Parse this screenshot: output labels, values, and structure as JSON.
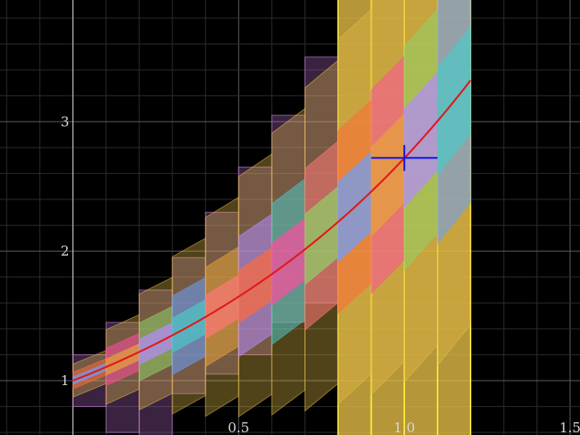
{
  "chart_data": {
    "type": "area",
    "xlim": [
      -0.22,
      1.53
    ],
    "ylim": [
      0.58,
      3.94
    ],
    "grid": true,
    "x_ticks": [
      {
        "value": 0.5,
        "label": "0.5"
      },
      {
        "value": 1.0,
        "label": "1.0"
      },
      {
        "value": 1.5,
        "label": "1.5"
      }
    ],
    "y_ticks": [
      {
        "value": 1,
        "label": "1"
      },
      {
        "value": 2,
        "label": "2"
      },
      {
        "value": 3,
        "label": "3"
      }
    ],
    "x_minor_step": 0.1,
    "y_minor_step": 0.2,
    "curve": {
      "function": "exp(x)",
      "x_range": [
        0,
        1.2
      ]
    },
    "boxes": [
      {
        "x": 0.0,
        "y_low": 0.8,
        "y_high": 1.2
      },
      {
        "x": 0.1,
        "y_low": 0.6,
        "y_high": 1.45
      },
      {
        "x": 0.2,
        "y_low": 0.55,
        "y_high": 1.7
      },
      {
        "x": 0.3,
        "y_low": 0.9,
        "y_high": 1.95
      },
      {
        "x": 0.4,
        "y_low": 1.05,
        "y_high": 2.3
      },
      {
        "x": 0.5,
        "y_low": 1.2,
        "y_high": 2.65
      },
      {
        "x": 0.6,
        "y_low": 1.45,
        "y_high": 3.05
      },
      {
        "x": 0.7,
        "y_low": 1.6,
        "y_high": 3.5
      }
    ],
    "yellow_boxes_x": [
      0.8,
      0.9,
      1.0,
      1.1
    ],
    "marker": {
      "x": 1.0,
      "y": 2.72,
      "x_err": 0.1,
      "y_err": 0.1
    },
    "colors": {
      "background": "#000000",
      "grid_major": "#5a5a5a",
      "grid_minor": "#2a2a2a",
      "axis": "#cfcfcf",
      "purple_fill": "#b46ec8",
      "purple_edge": "#d58be4",
      "yellow_fill": "#e8c048",
      "yellow_edge": "#fff23c",
      "curve": "#e01818",
      "marker": "#1818e0",
      "band_colors": [
        "#ff6a3c",
        "#ff4fa0",
        "#8fd16a",
        "#6aa0ff",
        "#e5a43a",
        "#b48cff",
        "#4fc7c7",
        "#ff7878"
      ]
    }
  }
}
